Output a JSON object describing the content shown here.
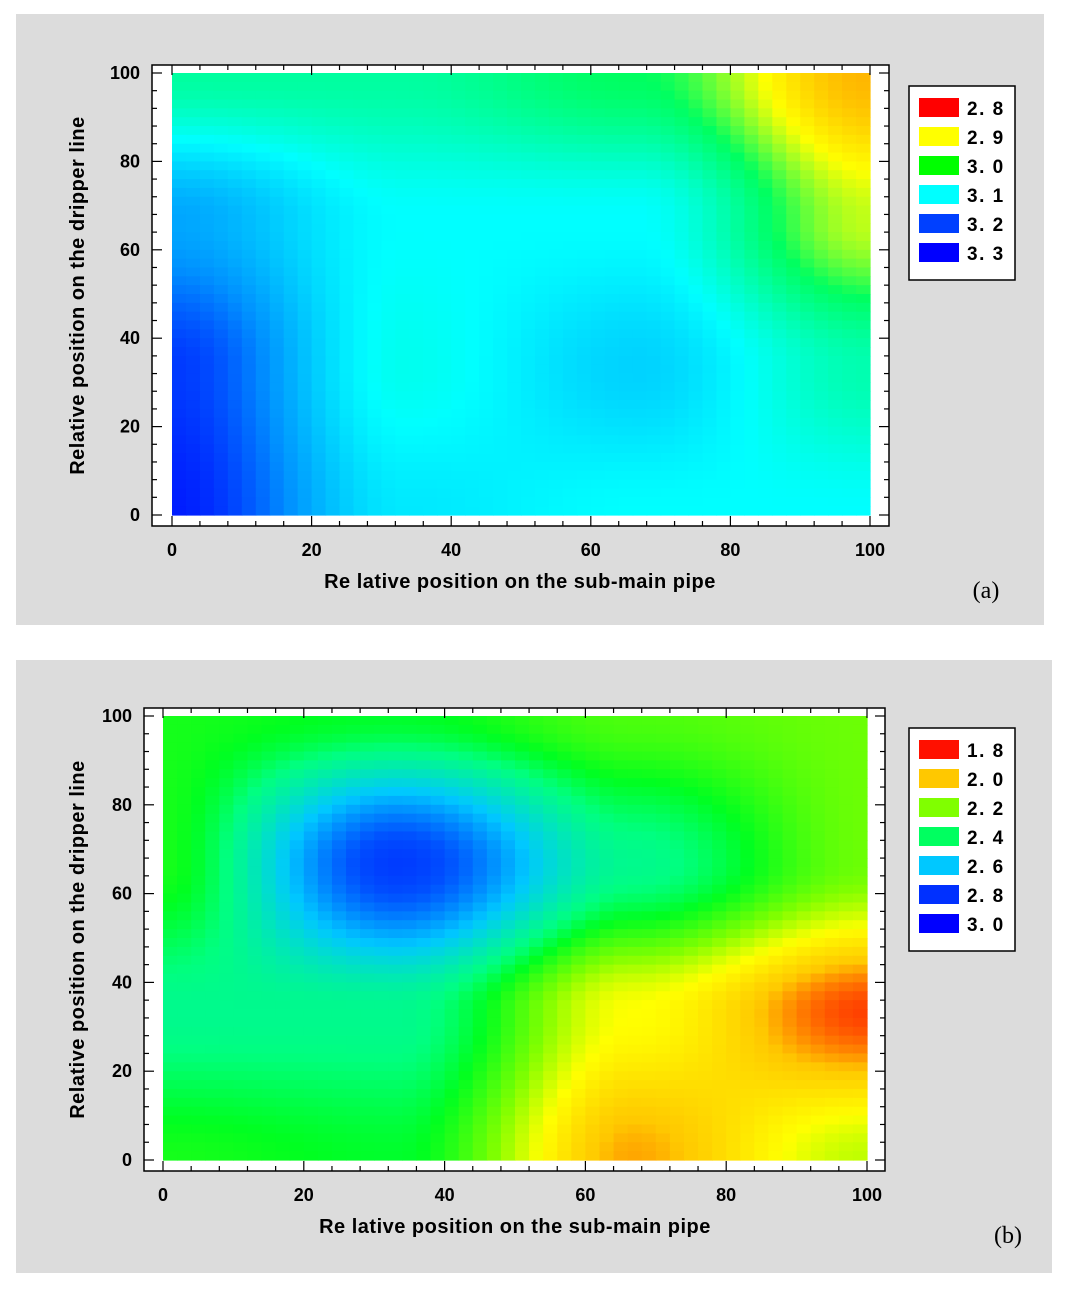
{
  "chart_data": [
    {
      "type": "heatmap",
      "panel_label": "(a)",
      "xlabel": "Re lative position on the sub-main pipe",
      "ylabel": "Relative position on the dripper line",
      "xlim": [
        0,
        100
      ],
      "ylim": [
        0,
        100
      ],
      "xticks": [
        "0",
        "20",
        "40",
        "60",
        "80",
        "100"
      ],
      "yticks": [
        "0",
        "20",
        "40",
        "60",
        "80",
        "100"
      ],
      "legend_position": "right",
      "legend": [
        {
          "label": "2. 8",
          "color": "#ff0000"
        },
        {
          "label": "2. 9",
          "color": "#ffff00"
        },
        {
          "label": "3. 0",
          "color": "#00ff00"
        },
        {
          "label": "3. 1",
          "color": "#00ffff"
        },
        {
          "label": "3. 2",
          "color": "#0040ff"
        },
        {
          "label": "3. 3",
          "color": "#0000ff"
        }
      ],
      "color_stops": [
        {
          "value": 2.75,
          "color": "#ff0000"
        },
        {
          "value": 2.85,
          "color": "#ffaa00"
        },
        {
          "value": 2.92,
          "color": "#ffff00"
        },
        {
          "value": 3.0,
          "color": "#00ff60"
        },
        {
          "value": 3.1,
          "color": "#00ffff"
        },
        {
          "value": 3.2,
          "color": "#0090ff"
        },
        {
          "value": 3.3,
          "color": "#0000ff"
        }
      ],
      "x": [
        0,
        33.3,
        66.7,
        100
      ],
      "y": [
        0,
        33.3,
        66.7,
        100
      ],
      "z": [
        [
          3.28,
          3.12,
          3.1,
          3.1
        ],
        [
          3.26,
          3.09,
          3.14,
          3.05
        ],
        [
          3.18,
          3.1,
          3.1,
          2.94
        ],
        [
          3.04,
          3.04,
          3.0,
          2.86
        ]
      ]
    },
    {
      "type": "heatmap",
      "panel_label": "(b)",
      "xlabel": "Re lative position on the sub-main pipe",
      "ylabel": "Relative position on the dripper line",
      "xlim": [
        0,
        100
      ],
      "ylim": [
        0,
        100
      ],
      "xticks": [
        "0",
        "20",
        "40",
        "60",
        "80",
        "100"
      ],
      "yticks": [
        "0",
        "20",
        "40",
        "60",
        "80",
        "100"
      ],
      "legend_position": "right",
      "legend": [
        {
          "label": "1. 8",
          "color": "#ff1000"
        },
        {
          "label": "2. 0",
          "color": "#ffc800"
        },
        {
          "label": "2. 2",
          "color": "#80ff00"
        },
        {
          "label": "2. 4",
          "color": "#00ff60"
        },
        {
          "label": "2. 6",
          "color": "#00c8ff"
        },
        {
          "label": "2. 8",
          "color": "#0030ff"
        },
        {
          "label": "3. 0",
          "color": "#0000ff"
        }
      ],
      "color_stops": [
        {
          "value": 1.9,
          "color": "#ff2000"
        },
        {
          "value": 2.0,
          "color": "#ffc800"
        },
        {
          "value": 2.1,
          "color": "#ffff00"
        },
        {
          "value": 2.2,
          "color": "#80ff00"
        },
        {
          "value": 2.32,
          "color": "#00ff20"
        },
        {
          "value": 2.4,
          "color": "#00ff80"
        },
        {
          "value": 2.6,
          "color": "#00c8ff"
        },
        {
          "value": 2.8,
          "color": "#0050ff"
        },
        {
          "value": 3.0,
          "color": "#0000ff"
        }
      ],
      "x": [
        0,
        33.3,
        66.7,
        100
      ],
      "y": [
        0,
        33.3,
        66.7,
        100
      ],
      "z": [
        [
          2.3,
          2.33,
          1.98,
          2.15
        ],
        [
          2.42,
          2.42,
          2.1,
          1.92
        ],
        [
          2.3,
          2.85,
          2.42,
          2.22
        ],
        [
          2.3,
          2.33,
          2.25,
          2.22
        ]
      ]
    }
  ]
}
